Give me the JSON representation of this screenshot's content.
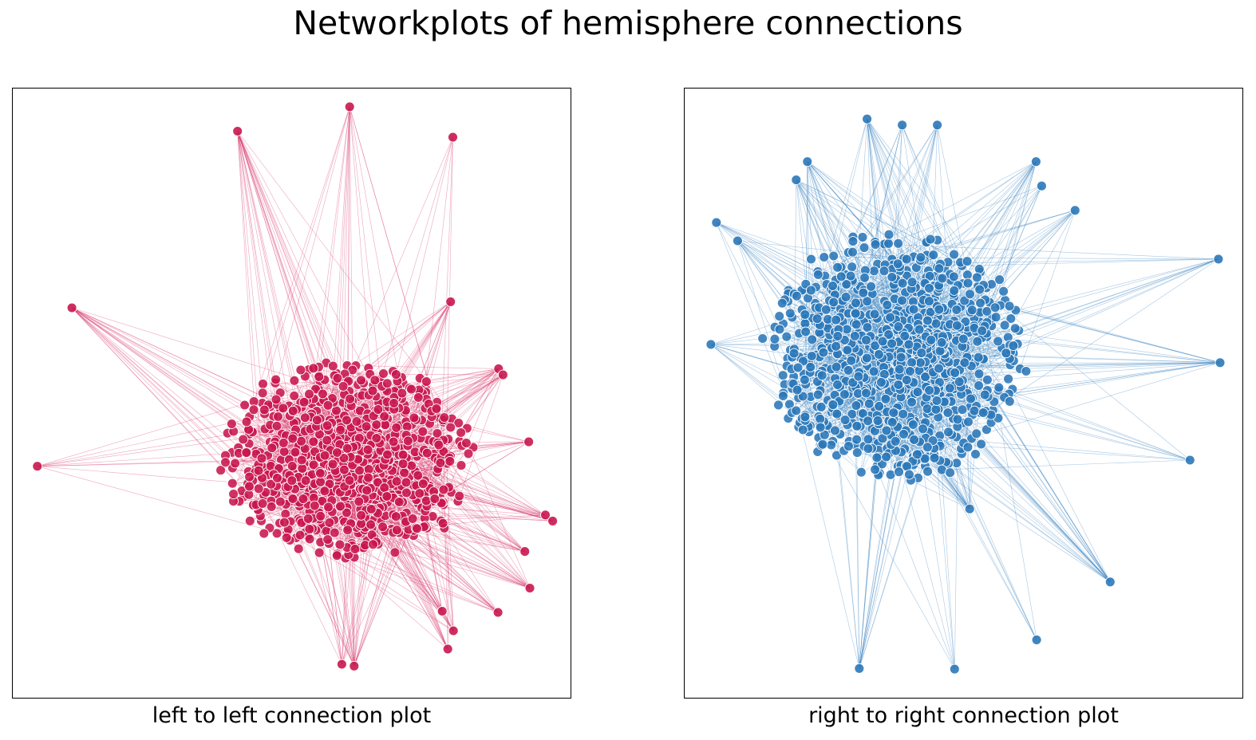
{
  "title": "Networkplots of hemisphere connections",
  "chart_data": [
    {
      "type": "network",
      "xlabel": "left to left connection plot",
      "node_color": "#c8174f",
      "edge_color": "#d63a6c",
      "core": {
        "center": [
          0.6,
          0.39
        ],
        "radius": [
          0.47,
          0.34
        ],
        "node_count": 900
      },
      "outlier_nodes": [
        [
          0.604,
          0.97
        ],
        [
          0.403,
          0.93
        ],
        [
          0.789,
          0.92
        ],
        [
          0.106,
          0.64
        ],
        [
          0.044,
          0.38
        ],
        [
          0.785,
          0.65
        ],
        [
          0.871,
          0.54
        ],
        [
          0.879,
          0.53
        ],
        [
          0.925,
          0.42
        ],
        [
          0.955,
          0.3
        ],
        [
          0.968,
          0.29
        ],
        [
          0.918,
          0.24
        ],
        [
          0.927,
          0.18
        ],
        [
          0.87,
          0.14
        ],
        [
          0.79,
          0.11
        ],
        [
          0.78,
          0.08
        ],
        [
          0.612,
          0.052
        ],
        [
          0.59,
          0.055
        ],
        [
          0.77,
          0.142
        ]
      ]
    },
    {
      "type": "network",
      "xlabel": "right to right connection plot",
      "node_color": "#2b78b8",
      "edge_color": "#3d86c2",
      "core": {
        "center": [
          0.38,
          0.56
        ],
        "radius": [
          0.49,
          0.43
        ],
        "node_count": 1000
      },
      "outlier_nodes": [
        [
          0.327,
          0.95
        ],
        [
          0.39,
          0.94
        ],
        [
          0.453,
          0.94
        ],
        [
          0.22,
          0.88
        ],
        [
          0.2,
          0.85
        ],
        [
          0.957,
          0.72
        ],
        [
          0.96,
          0.55
        ],
        [
          0.906,
          0.39
        ],
        [
          0.763,
          0.19
        ],
        [
          0.631,
          0.095
        ],
        [
          0.484,
          0.047
        ],
        [
          0.313,
          0.048
        ],
        [
          0.057,
          0.78
        ],
        [
          0.047,
          0.58
        ],
        [
          0.095,
          0.75
        ],
        [
          0.63,
          0.88
        ],
        [
          0.64,
          0.84
        ],
        [
          0.7,
          0.8
        ],
        [
          0.511,
          0.31
        ]
      ]
    }
  ]
}
